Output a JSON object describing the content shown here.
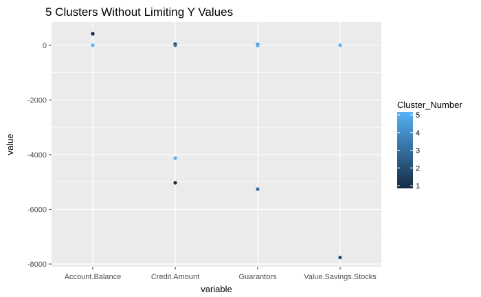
{
  "chart_data": {
    "type": "scatter",
    "title": "5 Clusters Without Limiting Y Values",
    "xlabel": "variable",
    "ylabel": "value",
    "categories": [
      "Account.Balance",
      "Credit.Amount",
      "Guarantors",
      "Value.Savings.Stocks"
    ],
    "yticks": [
      0,
      -2000,
      -4000,
      -6000,
      -8000
    ],
    "ytick_labels": [
      "0",
      "-2000",
      "-4000",
      "-6000",
      "-8000"
    ],
    "ylim": [
      -8100,
      850
    ],
    "grid": true,
    "legend": {
      "title": "Cluster_Number",
      "position": "right",
      "labels": [
        "5",
        "4",
        "3",
        "2",
        "1"
      ],
      "values": [
        5,
        4,
        3,
        2,
        1
      ],
      "color_low": "#132B43",
      "color_high": "#56B1F7"
    },
    "points": [
      {
        "x": "Account.Balance",
        "y": 420,
        "cluster": 1
      },
      {
        "x": "Account.Balance",
        "y": 0,
        "cluster": 5
      },
      {
        "x": "Credit.Amount",
        "y": 40,
        "cluster": 1
      },
      {
        "x": "Credit.Amount",
        "y": 0,
        "cluster": 3
      },
      {
        "x": "Credit.Amount",
        "y": -4130,
        "cluster": 5
      },
      {
        "x": "Credit.Amount",
        "y": -5030,
        "cluster": 1
      },
      {
        "x": "Guarantors",
        "y": 30,
        "cluster": 4
      },
      {
        "x": "Guarantors",
        "y": -10,
        "cluster": 5
      },
      {
        "x": "Guarantors",
        "y": -5260,
        "cluster": 3
      },
      {
        "x": "Value.Savings.Stocks",
        "y": 0,
        "cluster": 5
      },
      {
        "x": "Value.Savings.Stocks",
        "y": -7760,
        "cluster": 2
      }
    ]
  }
}
